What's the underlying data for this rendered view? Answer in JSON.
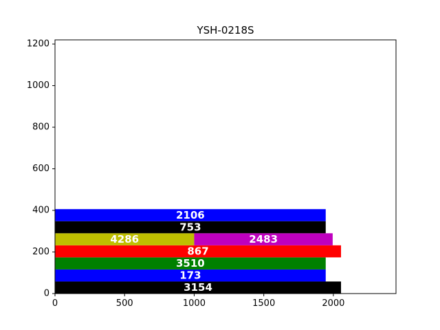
{
  "chart_data": {
    "type": "bar",
    "orientation": "horizontal",
    "stacked": true,
    "title": "YSH-0218S",
    "xlabel": "",
    "ylabel": "",
    "xlim": [
      0,
      2450
    ],
    "ylim": [
      0,
      1220
    ],
    "xticks": [
      0,
      500,
      1000,
      1500,
      2000
    ],
    "yticks": [
      0,
      200,
      400,
      600,
      800,
      1000,
      1200
    ],
    "grid": false,
    "legend": "none",
    "segments": [
      {
        "label": "3154",
        "color": "#000000",
        "y_range": [
          0,
          58
        ],
        "x_range": [
          0,
          2055
        ]
      },
      {
        "label": "173",
        "color": "#0000ff",
        "y_range": [
          58,
          116
        ],
        "x_range": [
          0,
          1945
        ]
      },
      {
        "label": "3510",
        "color": "#008000",
        "y_range": [
          116,
          174
        ],
        "x_range": [
          0,
          1945
        ]
      },
      {
        "label": "867",
        "color": "#ff0000",
        "y_range": [
          174,
          232
        ],
        "x_range": [
          0,
          2055
        ]
      },
      {
        "label": "4286",
        "color": "#bfbf00",
        "y_range": [
          232,
          290
        ],
        "x_range": [
          0,
          1000
        ]
      },
      {
        "label": "2483",
        "color": "#bf00bf",
        "y_range": [
          232,
          290
        ],
        "x_range": [
          1000,
          1995
        ]
      },
      {
        "label": "753",
        "color": "#000000",
        "y_range": [
          290,
          348
        ],
        "x_range": [
          0,
          1945
        ]
      },
      {
        "label": "2106",
        "color": "#0000ff",
        "y_range": [
          348,
          406
        ],
        "x_range": [
          0,
          1945
        ]
      }
    ]
  }
}
